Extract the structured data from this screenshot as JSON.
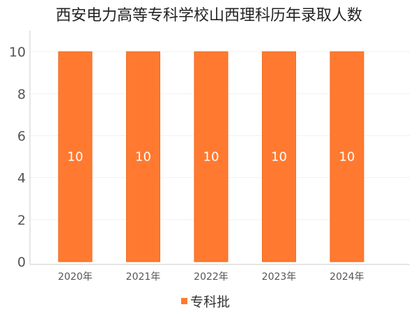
{
  "chart_data": {
    "type": "bar",
    "title": "西安电力高等专科学校山西理科历年录取人数",
    "categories": [
      "2020年",
      "2021年",
      "2022年",
      "2023年",
      "2024年"
    ],
    "series": [
      {
        "name": "专科批",
        "values": [
          10,
          10,
          10,
          10,
          10
        ]
      }
    ],
    "data_labels": [
      "10",
      "10",
      "10",
      "10",
      "10"
    ],
    "yticks": [
      "0",
      "2",
      "4",
      "6",
      "8",
      "10"
    ],
    "ylim": [
      0,
      11
    ],
    "grid": true,
    "legend": "bottom",
    "colors": {
      "bar": "#FF7A30",
      "bar_edge": "#F06A20",
      "axis": "#cccccc",
      "grid": "#f1f1f1"
    }
  }
}
